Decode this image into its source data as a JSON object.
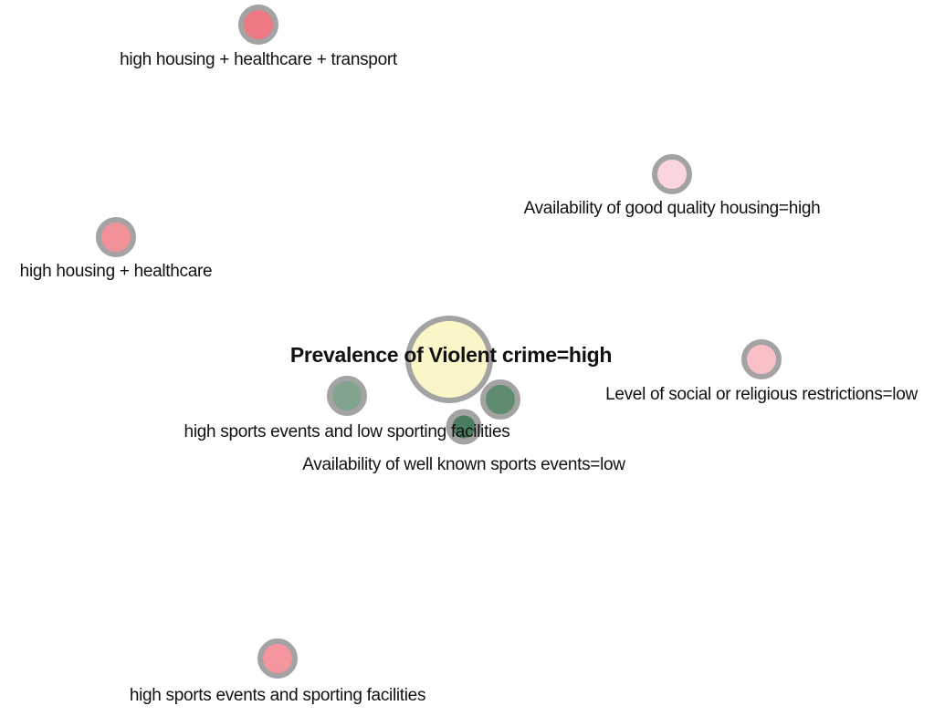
{
  "nodes": [
    {
      "id": "hht",
      "label": "high housing + healthcare + transport",
      "fill": "#ef7885"
    },
    {
      "id": "aqh",
      "label": "Availability of good quality housing=high",
      "fill": "#fbd6dc"
    },
    {
      "id": "hh",
      "label": "high housing + healthcare",
      "fill": "#f29199"
    },
    {
      "id": "pvc",
      "label": "Prevalence of Violent crime=high",
      "fill": "#faf6c8"
    },
    {
      "id": "lsr",
      "label": "Level of social or religious restrictions=low",
      "fill": "#f8c1c7"
    },
    {
      "id": "hse",
      "label": "high sports events and low sporting facilities",
      "fill": "#82a48e"
    },
    {
      "id": "wkse",
      "label": "Availability of well known sports events=low",
      "fill": "#4a7c60"
    },
    {
      "id": "wkse2",
      "label": "",
      "fill": "#5e8a70"
    },
    {
      "id": "hsf",
      "label": "high sports events and sporting facilities",
      "fill": "#f5959e"
    }
  ],
  "colors": {
    "node_stroke": "#a3a3a3",
    "label_text": "#111111",
    "background": "#ffffff"
  }
}
